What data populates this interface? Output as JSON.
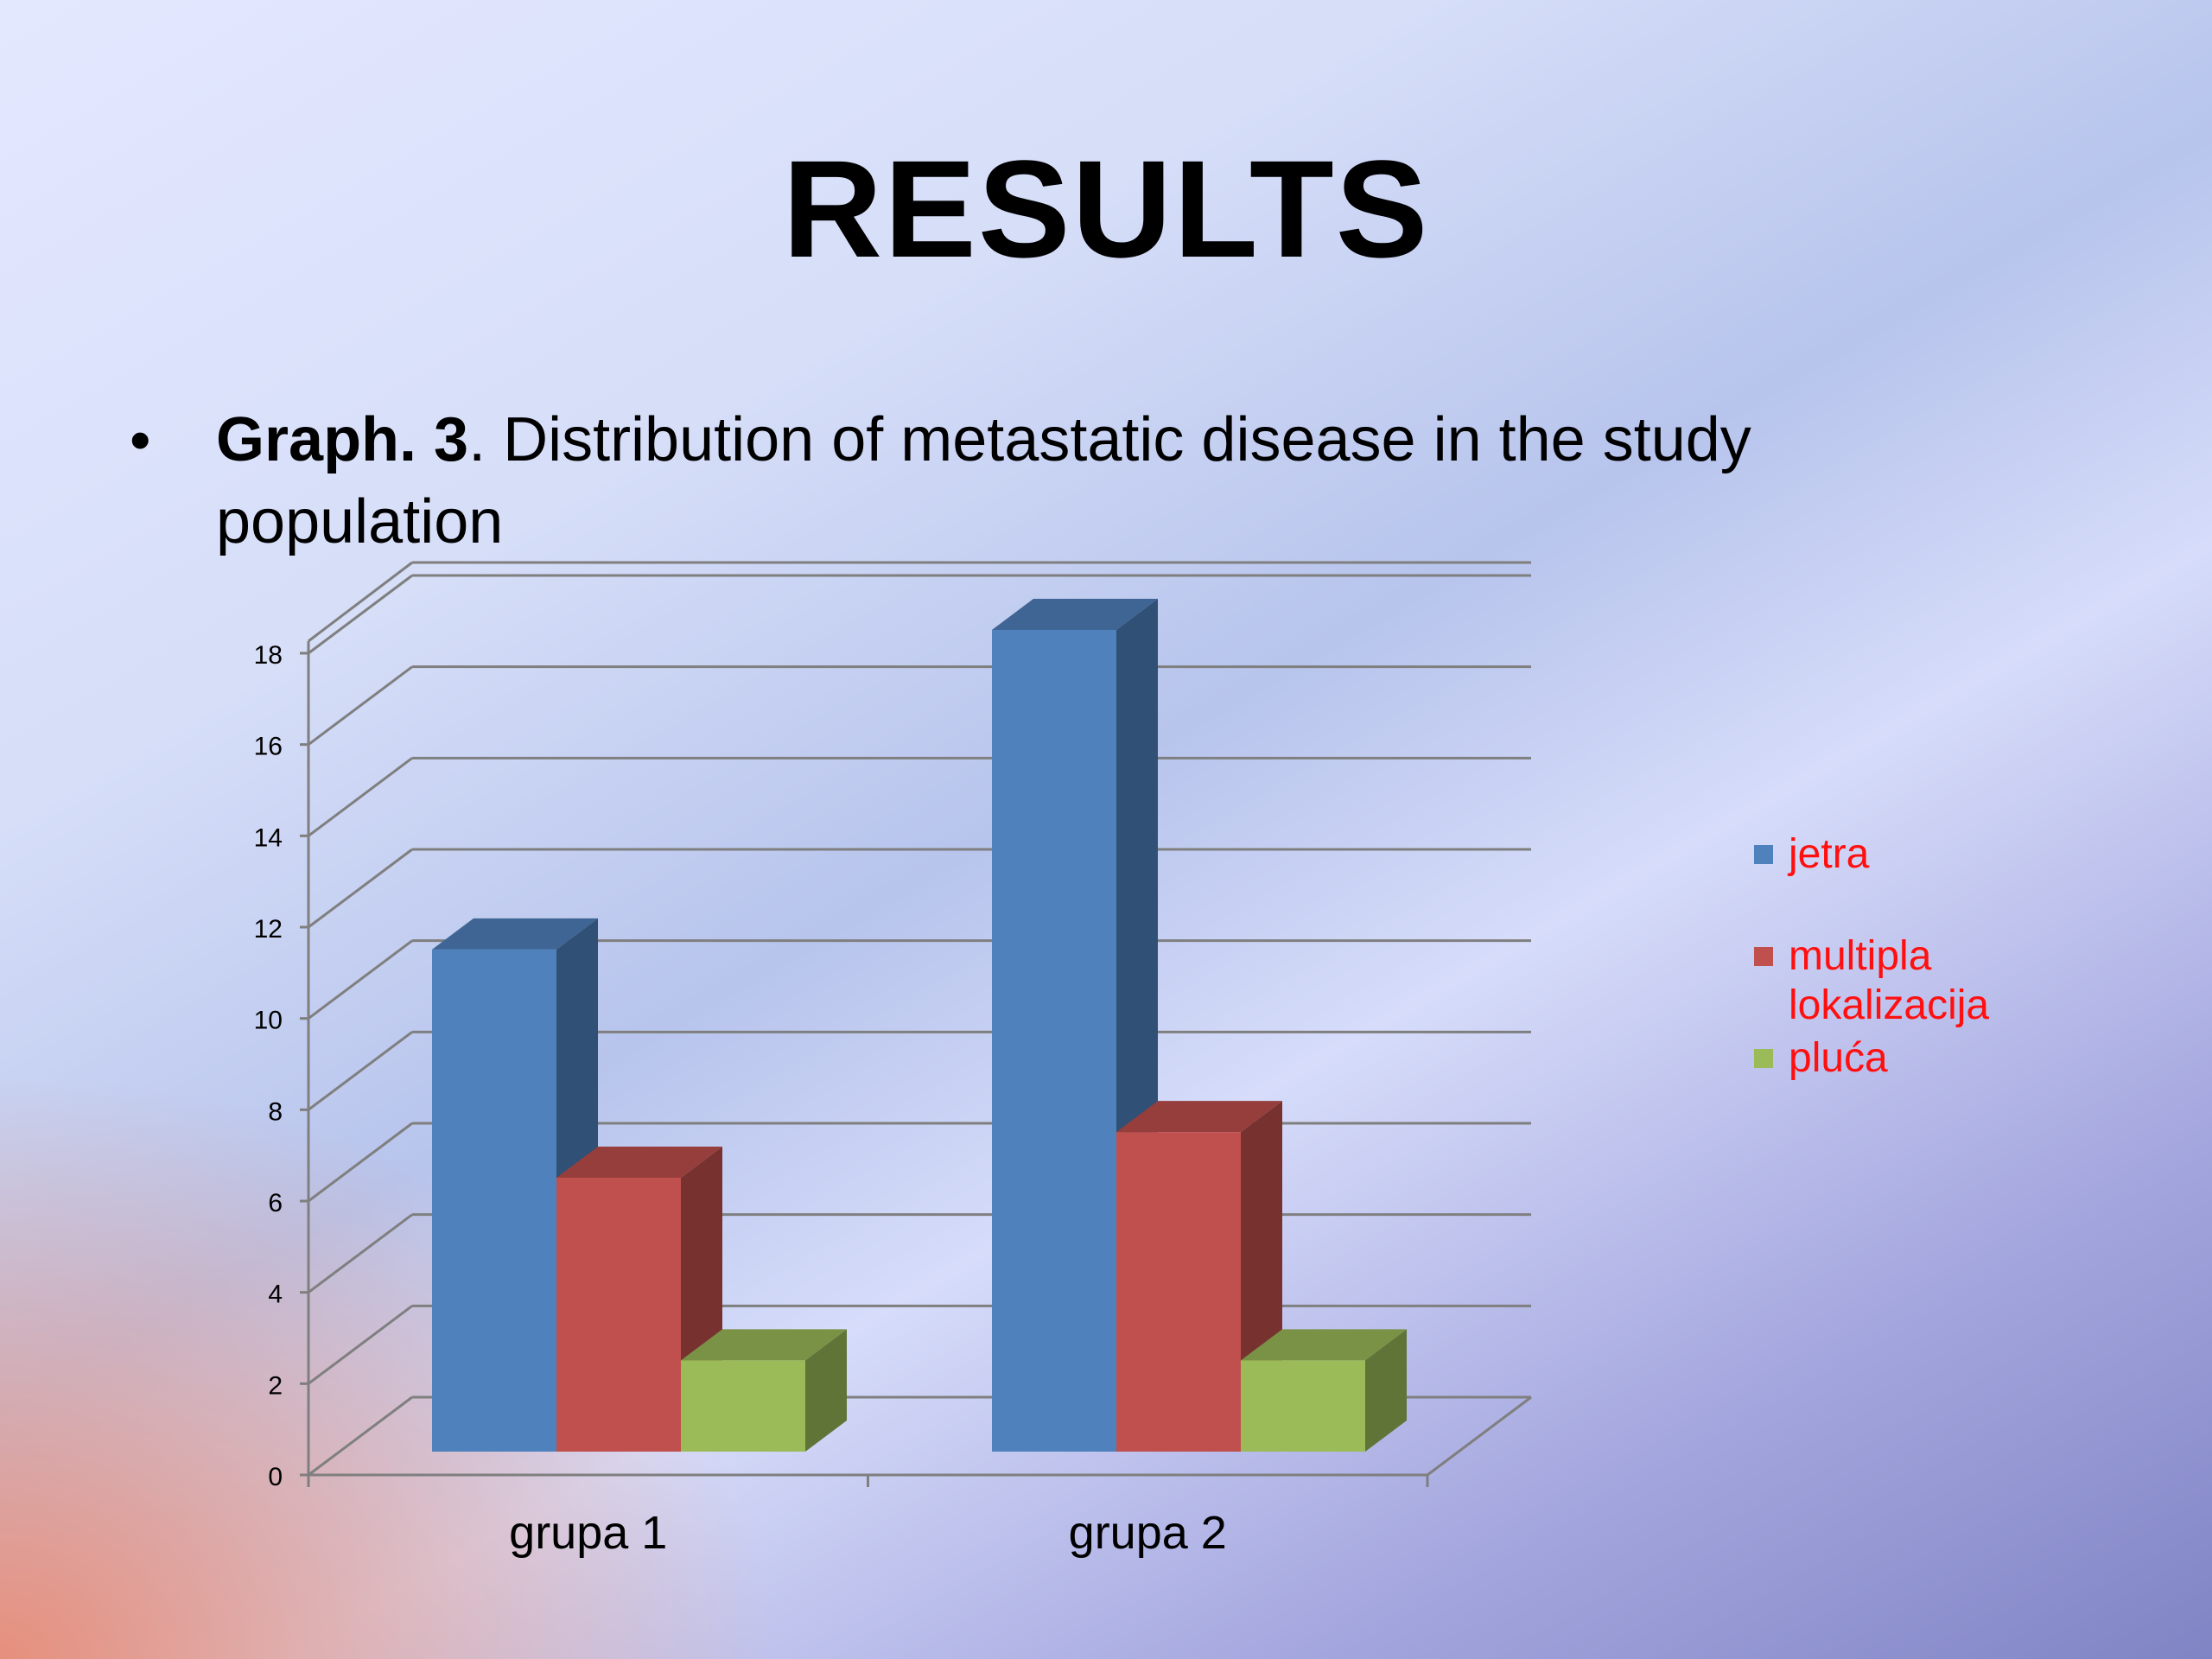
{
  "slide": {
    "title": "RESULTS",
    "bullet": {
      "label_bold": "Graph. 3",
      "text": ". Distribution of metastatic disease in the study population"
    }
  },
  "chart_data": {
    "type": "bar",
    "style": "3d-clustered",
    "categories": [
      "grupa 1",
      "grupa 2"
    ],
    "series": [
      {
        "name": "jetra",
        "values": [
          11,
          18
        ],
        "color": "#4f81bd"
      },
      {
        "name": "multipla lokalizacija",
        "values": [
          6,
          7
        ],
        "color": "#c0504d"
      },
      {
        "name": "pluća",
        "values": [
          2,
          2
        ],
        "color": "#9bbb59"
      }
    ],
    "ylim": [
      0,
      18
    ],
    "yticks": [
      "0",
      "2",
      "4",
      "6",
      "8",
      "10",
      "12",
      "14",
      "16",
      "18"
    ],
    "grid": true,
    "legend": "right",
    "legend_text_color": "#ff1010"
  }
}
